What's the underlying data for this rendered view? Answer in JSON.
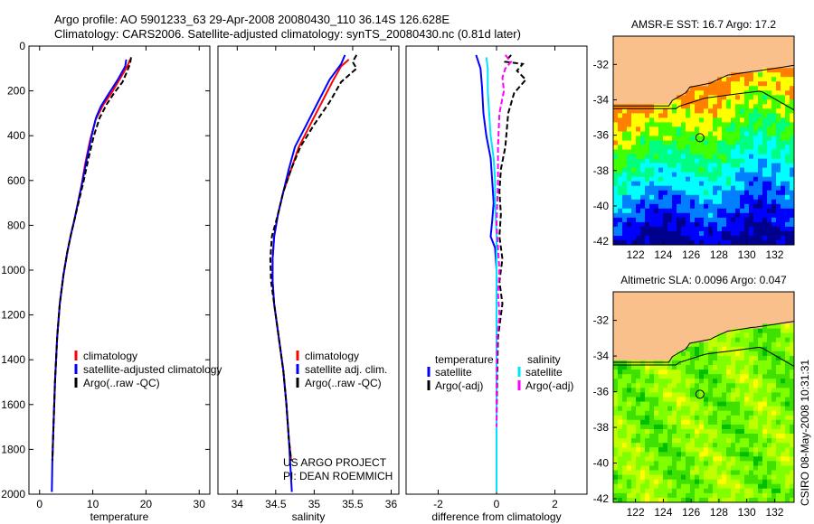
{
  "header": {
    "title_line1": "Argo profile: AO 5901233_63 29-Apr-2008 20080430_110 36.14S 126.628E",
    "title_line2": "Climatology: CARS2006. Satellite-adjusted climatology: synTS_20080430.nc (0.81d later)"
  },
  "side_label": "CSIRO 08-May-2008 10:31:31",
  "credit": {
    "line1": "US ARGO PROJECT",
    "line2": "PI: DEAN ROEMMICH"
  },
  "colors": {
    "climatology": "#ff0000",
    "satellite": "#0000ff",
    "argo": "#000000",
    "sat_salinity": "#00e5ff",
    "argo_salinity": "#ff00ff",
    "land": "#f9c08c"
  },
  "chart_data": [
    {
      "type": "line",
      "xlabel": "temperature",
      "ylim": [
        2000,
        0
      ],
      "xlim": [
        -2,
        32
      ],
      "xticks": [
        0,
        10,
        20,
        30
      ],
      "yticks": [
        0,
        200,
        400,
        600,
        800,
        1000,
        1200,
        1400,
        1600,
        1800,
        2000
      ],
      "legend": [
        "climatology",
        "satellite-adjusted climatology",
        "Argo(..raw -QC)"
      ],
      "series": [
        {
          "name": "climatology",
          "color": "#ff0000",
          "dash": "",
          "points": [
            [
              17,
              60
            ],
            [
              16.5,
              90
            ],
            [
              15,
              150
            ],
            [
              13.5,
              210
            ],
            [
              12,
              260
            ],
            [
              10.5,
              330
            ],
            [
              9.5,
              420
            ],
            [
              8.6,
              520
            ],
            [
              7.9,
              620
            ],
            [
              7.2,
              700
            ],
            [
              6.5,
              780
            ],
            [
              5.9,
              840
            ],
            [
              5.2,
              920
            ],
            [
              4.5,
              1020
            ],
            [
              3.8,
              1150
            ],
            [
              3.3,
              1300
            ],
            [
              2.9,
              1500
            ],
            [
              2.6,
              1700
            ],
            [
              2.4,
              1850
            ]
          ]
        },
        {
          "name": "satellite-adjusted climatology",
          "color": "#0000ff",
          "dash": "",
          "points": [
            [
              16.3,
              60
            ],
            [
              16.1,
              90
            ],
            [
              14.7,
              150
            ],
            [
              12.8,
              220
            ],
            [
              11.5,
              270
            ],
            [
              10.6,
              320
            ],
            [
              9.8,
              400
            ],
            [
              8.9,
              500
            ],
            [
              8.1,
              600
            ],
            [
              7.3,
              690
            ],
            [
              6.6,
              770
            ],
            [
              5.9,
              840
            ],
            [
              5.2,
              920
            ],
            [
              4.5,
              1020
            ],
            [
              3.8,
              1150
            ],
            [
              3.3,
              1300
            ],
            [
              2.9,
              1500
            ],
            [
              2.6,
              1700
            ],
            [
              2.4,
              1850
            ],
            [
              2.3,
              1990
            ]
          ]
        },
        {
          "name": "Argo(..raw -QC)",
          "color": "#000000",
          "dash": "6,3",
          "points": [
            [
              17.2,
              50
            ],
            [
              17.0,
              80
            ],
            [
              16.5,
              110
            ],
            [
              15.6,
              160
            ],
            [
              14,
              210
            ],
            [
              12.6,
              260
            ],
            [
              11.3,
              320
            ],
            [
              10.2,
              400
            ],
            [
              9.2,
              500
            ],
            [
              8.3,
              600
            ],
            [
              7.4,
              690
            ],
            [
              6.6,
              770
            ],
            [
              5.9,
              840
            ],
            [
              5.2,
              920
            ],
            [
              4.5,
              1020
            ],
            [
              3.8,
              1150
            ],
            [
              3.3,
              1300
            ],
            [
              2.9,
              1500
            ],
            [
              2.6,
              1700
            ],
            [
              2.4,
              1850
            ]
          ]
        }
      ]
    },
    {
      "type": "line",
      "xlabel": "salinity",
      "ylim": [
        2000,
        0
      ],
      "xlim": [
        33.75,
        36.1
      ],
      "xticks": [
        34,
        34.5,
        35,
        35.5,
        36
      ],
      "yticks": [],
      "legend": [
        "climatology",
        "satellite adj. clim.",
        "Argo(..raw -QC)"
      ],
      "series": [
        {
          "name": "climatology",
          "color": "#ff0000",
          "dash": "",
          "points": [
            [
              35.45,
              60
            ],
            [
              35.35,
              90
            ],
            [
              35.25,
              150
            ],
            [
              35.1,
              250
            ],
            [
              34.95,
              350
            ],
            [
              34.8,
              450
            ],
            [
              34.7,
              550
            ],
            [
              34.6,
              650
            ],
            [
              34.53,
              750
            ],
            [
              34.48,
              850
            ],
            [
              34.46,
              950
            ],
            [
              34.46,
              1050
            ],
            [
              34.48,
              1150
            ],
            [
              34.52,
              1250
            ],
            [
              34.56,
              1350
            ],
            [
              34.6,
              1450
            ],
            [
              34.64,
              1600
            ],
            [
              34.67,
              1750
            ],
            [
              34.7,
              1850
            ]
          ]
        },
        {
          "name": "satellite adj. clim.",
          "color": "#0000ff",
          "dash": "",
          "points": [
            [
              35.4,
              40
            ],
            [
              35.35,
              80
            ],
            [
              35.2,
              150
            ],
            [
              35.05,
              250
            ],
            [
              34.9,
              350
            ],
            [
              34.75,
              450
            ],
            [
              34.67,
              550
            ],
            [
              34.6,
              650
            ],
            [
              34.53,
              750
            ],
            [
              34.48,
              850
            ],
            [
              34.46,
              950
            ],
            [
              34.46,
              1050
            ],
            [
              34.48,
              1150
            ],
            [
              34.52,
              1250
            ],
            [
              34.56,
              1350
            ],
            [
              34.6,
              1450
            ],
            [
              34.64,
              1600
            ],
            [
              34.67,
              1750
            ],
            [
              34.71,
              1990
            ]
          ]
        },
        {
          "name": "Argo(..raw -QC)",
          "color": "#000000",
          "dash": "6,3",
          "points": [
            [
              35.55,
              40
            ],
            [
              35.5,
              70
            ],
            [
              35.55,
              100
            ],
            [
              35.35,
              160
            ],
            [
              35.2,
              250
            ],
            [
              35.0,
              350
            ],
            [
              34.82,
              450
            ],
            [
              34.7,
              550
            ],
            [
              34.6,
              650
            ],
            [
              34.53,
              750
            ],
            [
              34.45,
              850
            ],
            [
              34.43,
              950
            ],
            [
              34.44,
              1050
            ],
            [
              34.48,
              1150
            ],
            [
              34.52,
              1250
            ],
            [
              34.56,
              1350
            ],
            [
              34.6,
              1450
            ],
            [
              34.64,
              1600
            ],
            [
              34.67,
              1750
            ],
            [
              34.7,
              1850
            ]
          ]
        }
      ]
    },
    {
      "type": "line",
      "xlabel": "difference from climatology",
      "ylim": [
        2000,
        0
      ],
      "xlim": [
        -3.1,
        3.1
      ],
      "xticks": [
        -2,
        0,
        2
      ],
      "yticks": [],
      "legend_headers": [
        "temperature",
        "salinity"
      ],
      "legend": [
        "satellite",
        "Argo(-adj)",
        "satellite",
        "Argo(-adj)"
      ],
      "series": [
        {
          "name": "satellite",
          "color": "#0000ff",
          "dash": "",
          "points": [
            [
              -0.7,
              40
            ],
            [
              -0.55,
              100
            ],
            [
              -0.5,
              180
            ],
            [
              -0.45,
              300
            ],
            [
              -0.35,
              400
            ],
            [
              -0.2,
              500
            ],
            [
              -0.15,
              600
            ],
            [
              -0.1,
              700
            ],
            [
              -0.15,
              780
            ],
            [
              -0.2,
              850
            ],
            [
              -0.05,
              900
            ],
            [
              0,
              1000
            ],
            [
              0,
              1200
            ],
            [
              0,
              1500
            ],
            [
              0,
              1800
            ]
          ]
        },
        {
          "name": "Argo(-adj)",
          "color": "#000000",
          "dash": "6,3",
          "points": [
            [
              0.5,
              40
            ],
            [
              0.3,
              70
            ],
            [
              0.9,
              80
            ],
            [
              0.7,
              110
            ],
            [
              1.0,
              150
            ],
            [
              0.6,
              210
            ],
            [
              0.4,
              300
            ],
            [
              0.3,
              450
            ],
            [
              0.15,
              550
            ],
            [
              0.1,
              650
            ],
            [
              0.15,
              750
            ],
            [
              0.1,
              850
            ],
            [
              0.2,
              950
            ],
            [
              0.1,
              1050
            ],
            [
              0.2,
              1150
            ],
            [
              0.05,
              1300
            ],
            [
              0.02,
              1500
            ],
            [
              0,
              1700
            ],
            [
              0,
              1850
            ]
          ]
        },
        {
          "name": "satellite",
          "color": "#00e5ff",
          "dash": "",
          "points": [
            [
              -0.35,
              50
            ],
            [
              -0.3,
              100
            ],
            [
              -0.3,
              200
            ],
            [
              -0.25,
              300
            ],
            [
              -0.2,
              400
            ],
            [
              -0.1,
              500
            ],
            [
              -0.05,
              600
            ],
            [
              -0.05,
              700
            ],
            [
              0,
              850
            ],
            [
              0,
              1000
            ],
            [
              0,
              1200
            ],
            [
              0,
              1500
            ],
            [
              0,
              1800
            ],
            [
              0,
              1990
            ]
          ]
        },
        {
          "name": "Argo(-adj)",
          "color": "#ff00ff",
          "dash": "6,3",
          "points": [
            [
              0.3,
              40
            ],
            [
              0.5,
              70
            ],
            [
              0.3,
              100
            ],
            [
              0.2,
              140
            ],
            [
              0.25,
              200
            ],
            [
              0.1,
              300
            ],
            [
              0.05,
              450
            ],
            [
              0.05,
              600
            ],
            [
              0,
              800
            ],
            [
              0.05,
              900
            ],
            [
              0.1,
              1000
            ],
            [
              0.05,
              1100
            ],
            [
              0.1,
              1200
            ],
            [
              0.02,
              1300
            ],
            [
              0,
              1500
            ],
            [
              0,
              1700
            ]
          ]
        }
      ]
    },
    {
      "type": "heatmap",
      "title": "AMSR-E SST: 16.7 Argo: 17.2",
      "xlim": [
        120.4,
        133.4
      ],
      "ylim": [
        -42.2,
        -30.4
      ],
      "xticks": [
        122,
        124,
        126,
        128,
        130,
        132
      ],
      "yticks": [
        -32,
        -34,
        -36,
        -38,
        -40,
        -42
      ],
      "marker": [
        126.63,
        -36.14
      ],
      "colors": [
        "#00008f",
        "#0000ff",
        "#0080ff",
        "#00ffff",
        "#00ff80",
        "#40ff00",
        "#ffff00",
        "#ff8000"
      ]
    },
    {
      "type": "heatmap",
      "title": "Altimetric SLA: 0.0096 Argo: 0.047",
      "xlim": [
        120.4,
        133.4
      ],
      "ylim": [
        -42.2,
        -30.4
      ],
      "xticks": [
        122,
        124,
        126,
        128,
        130,
        132
      ],
      "yticks": [
        -32,
        -34,
        -36,
        -38,
        -40,
        -42
      ],
      "marker": [
        126.63,
        -36.14
      ],
      "colors": [
        "#00c000",
        "#40e000",
        "#80ff00",
        "#c0ff00",
        "#ffff00"
      ]
    }
  ]
}
